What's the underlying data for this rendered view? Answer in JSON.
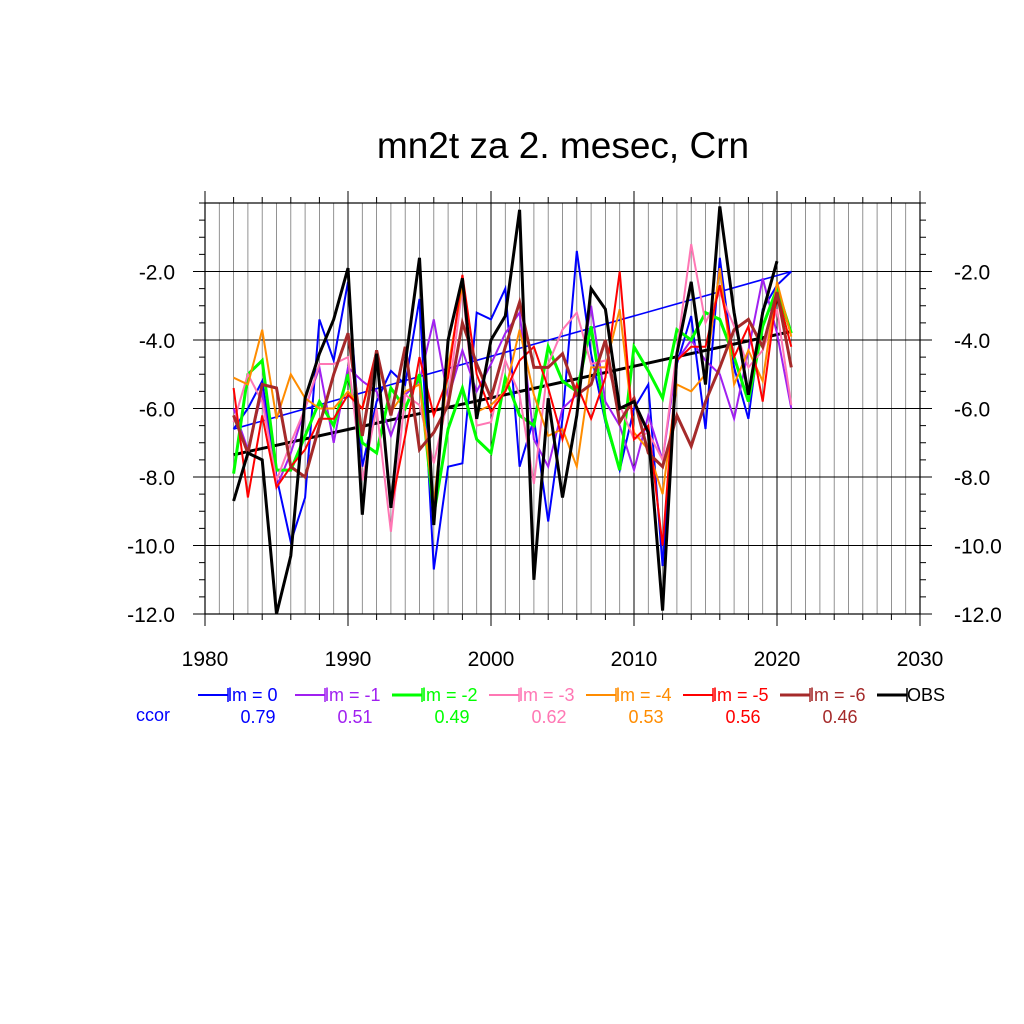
{
  "chart_data": {
    "type": "line",
    "title": "mn2t za 2. mesec, Crn",
    "xlabel": "",
    "ylabel": "",
    "xlim": [
      1980,
      2030
    ],
    "ylim": [
      -12.0,
      0.0
    ],
    "xticks": [
      1980,
      1990,
      2000,
      2010,
      2020,
      2030
    ],
    "yticks": [
      -12.0,
      -10.0,
      -8.0,
      -6.0,
      -4.0,
      -2.0
    ],
    "ytick_labels": [
      "-12.0",
      "-10.0",
      "-8.0",
      "-6.0",
      "-4.0",
      "-2.0"
    ],
    "grid": true,
    "legend_position": "bottom",
    "corr_label": "ccor",
    "corr_color": "#0000ff",
    "x": [
      1982,
      1983,
      1984,
      1985,
      1986,
      1987,
      1988,
      1989,
      1990,
      1991,
      1992,
      1993,
      1994,
      1995,
      1996,
      1997,
      1998,
      1999,
      2000,
      2001,
      2002,
      2003,
      2004,
      2005,
      2006,
      2007,
      2008,
      2009,
      2010,
      2011,
      2012,
      2013,
      2014,
      2015,
      2016,
      2017,
      2018,
      2019,
      2020,
      2021
    ],
    "series": [
      {
        "name": "lm = 0",
        "color": "#0000ff",
        "width": 2,
        "corr": "0.79",
        "values": [
          -6.6,
          -6.0,
          -5.2,
          -8.0,
          -9.9,
          -8.6,
          -3.4,
          -4.6,
          -2.3,
          -7.7,
          -5.8,
          -4.9,
          -5.3,
          -2.8,
          -10.7,
          -7.7,
          -7.6,
          -3.2,
          -3.4,
          -2.5,
          -7.7,
          -6.3,
          -9.3,
          -6.3,
          -1.4,
          -4.4,
          -6.4,
          -7.8,
          -6.0,
          -5.3,
          -10.6,
          -4.7,
          -3.3,
          -6.6,
          -1.6,
          -4.8,
          -6.3,
          -3.1,
          -2.4,
          -2.0
        ],
        "trend": [
          -6.6,
          -2.0
        ]
      },
      {
        "name": "lm = -1",
        "color": "#a020f0",
        "width": 2,
        "corr": "0.51",
        "values": [
          -6.0,
          -7.2,
          -5.5,
          -8.3,
          -7.3,
          -6.0,
          -4.8,
          -7.0,
          -4.8,
          -5.2,
          -5.5,
          -6.8,
          -5.6,
          -5.2,
          -3.4,
          -5.7,
          -4.3,
          -5.5,
          -4.7,
          -3.8,
          -3.2,
          -6.9,
          -7.7,
          -6.0,
          -5.6,
          -3.0,
          -5.8,
          -6.5,
          -7.8,
          -6.2,
          -7.5,
          -4.6,
          -4.0,
          -4.6,
          -5.0,
          -6.3,
          -4.3,
          -2.2,
          -3.8,
          -6.0
        ],
        "trend": null
      },
      {
        "name": "lm = -2",
        "color": "#00ff00",
        "width": 3,
        "corr": "0.49",
        "values": [
          -7.9,
          -5.0,
          -4.6,
          -7.8,
          -7.8,
          -6.8,
          -5.8,
          -6.5,
          -5.0,
          -7.0,
          -7.3,
          -5.4,
          -6.0,
          -5.0,
          -9.1,
          -6.6,
          -5.4,
          -6.9,
          -7.3,
          -5.1,
          -6.2,
          -6.5,
          -4.2,
          -5.2,
          -5.5,
          -3.6,
          -6.3,
          -7.8,
          -4.2,
          -4.9,
          -5.7,
          -3.7,
          -4.0,
          -3.2,
          -3.4,
          -4.5,
          -5.8,
          -3.6,
          -2.5,
          -3.8
        ],
        "trend": null
      },
      {
        "name": "lm = -3",
        "color": "#ff77b4",
        "width": 2,
        "corr": "0.62",
        "values": [
          -6.4,
          -5.0,
          -5.8,
          -8.1,
          -7.0,
          -6.0,
          -4.7,
          -4.7,
          -4.5,
          -8.1,
          -6.0,
          -9.6,
          -5.6,
          -5.9,
          -7.6,
          -5.7,
          -2.5,
          -6.5,
          -6.4,
          -4.6,
          -5.6,
          -8.2,
          -4.7,
          -3.7,
          -3.2,
          -4.7,
          -4.6,
          -5.9,
          -6.9,
          -6.7,
          -7.5,
          -4.3,
          -1.2,
          -3.5,
          -2.6,
          -3.6,
          -4.8,
          -4.3,
          -3.1,
          -5.9
        ],
        "trend": null
      },
      {
        "name": "lm = -4",
        "color": "#ff8c00",
        "width": 2,
        "corr": "0.53",
        "values": [
          -5.1,
          -5.3,
          -3.7,
          -6.3,
          -5.0,
          -5.7,
          -6.0,
          -6.0,
          -5.5,
          -6.0,
          -4.5,
          -6.1,
          -5.5,
          -5.3,
          -8.8,
          -4.8,
          -2.4,
          -6.1,
          -5.9,
          -5.5,
          -3.7,
          -5.6,
          -6.8,
          -6.6,
          -7.7,
          -4.8,
          -4.8,
          -3.1,
          -6.7,
          -7.2,
          -8.5,
          -5.3,
          -5.5,
          -5.0,
          -1.9,
          -5.3,
          -4.3,
          -5.2,
          -2.3,
          -3.9
        ],
        "trend": null
      },
      {
        "name": "lm = -5",
        "color": "#ff0000",
        "width": 2,
        "corr": "0.56",
        "values": [
          -5.4,
          -8.6,
          -6.2,
          -8.3,
          -7.7,
          -7.2,
          -6.3,
          -6.3,
          -5.6,
          -6.0,
          -4.3,
          -8.9,
          -6.8,
          -4.5,
          -6.2,
          -5.1,
          -2.1,
          -5.0,
          -6.1,
          -5.5,
          -4.6,
          -4.2,
          -5.4,
          -6.9,
          -5.3,
          -6.3,
          -5.1,
          -2.0,
          -6.9,
          -6.5,
          -10.0,
          -4.6,
          -4.2,
          -4.2,
          -2.4,
          -4.5,
          -3.6,
          -5.8,
          -2.6,
          -4.2
        ],
        "trend": null
      },
      {
        "name": "lm = -6",
        "color": "#a52a2a",
        "width": 3,
        "corr": "0.46",
        "values": [
          -6.2,
          -7.3,
          -5.3,
          -5.4,
          -7.7,
          -8.0,
          -6.5,
          -5.0,
          -3.8,
          -6.8,
          -4.3,
          -6.2,
          -4.2,
          -7.2,
          -6.7,
          -5.9,
          -3.5,
          -4.7,
          -5.7,
          -4.2,
          -2.9,
          -4.8,
          -4.8,
          -4.4,
          -5.6,
          -5.3,
          -4.0,
          -6.4,
          -5.7,
          -7.3,
          -7.7,
          -6.2,
          -7.1,
          -5.8,
          -4.8,
          -3.7,
          -3.4,
          -4.2,
          -2.6,
          -4.8
        ],
        "trend": null
      },
      {
        "name": "OBS",
        "color": "#000000",
        "width": 3,
        "corr": "",
        "values": [
          -8.7,
          -7.3,
          -7.5,
          -12.0,
          -10.3,
          -5.7,
          -4.4,
          -3.4,
          -1.9,
          -9.1,
          -4.4,
          -8.9,
          -4.7,
          -1.6,
          -9.4,
          -4.0,
          -2.2,
          -6.3,
          -4.0,
          -3.3,
          -0.2,
          -11.0,
          -5.7,
          -8.6,
          -6.2,
          -2.5,
          -3.1,
          -6.0,
          -5.8,
          -6.7,
          -11.9,
          -4.4,
          -2.3,
          -5.3,
          -0.1,
          -3.2,
          -5.6,
          -3.2,
          -1.7,
          null
        ],
        "trend": [
          -7.35,
          -3.75
        ]
      }
    ]
  }
}
